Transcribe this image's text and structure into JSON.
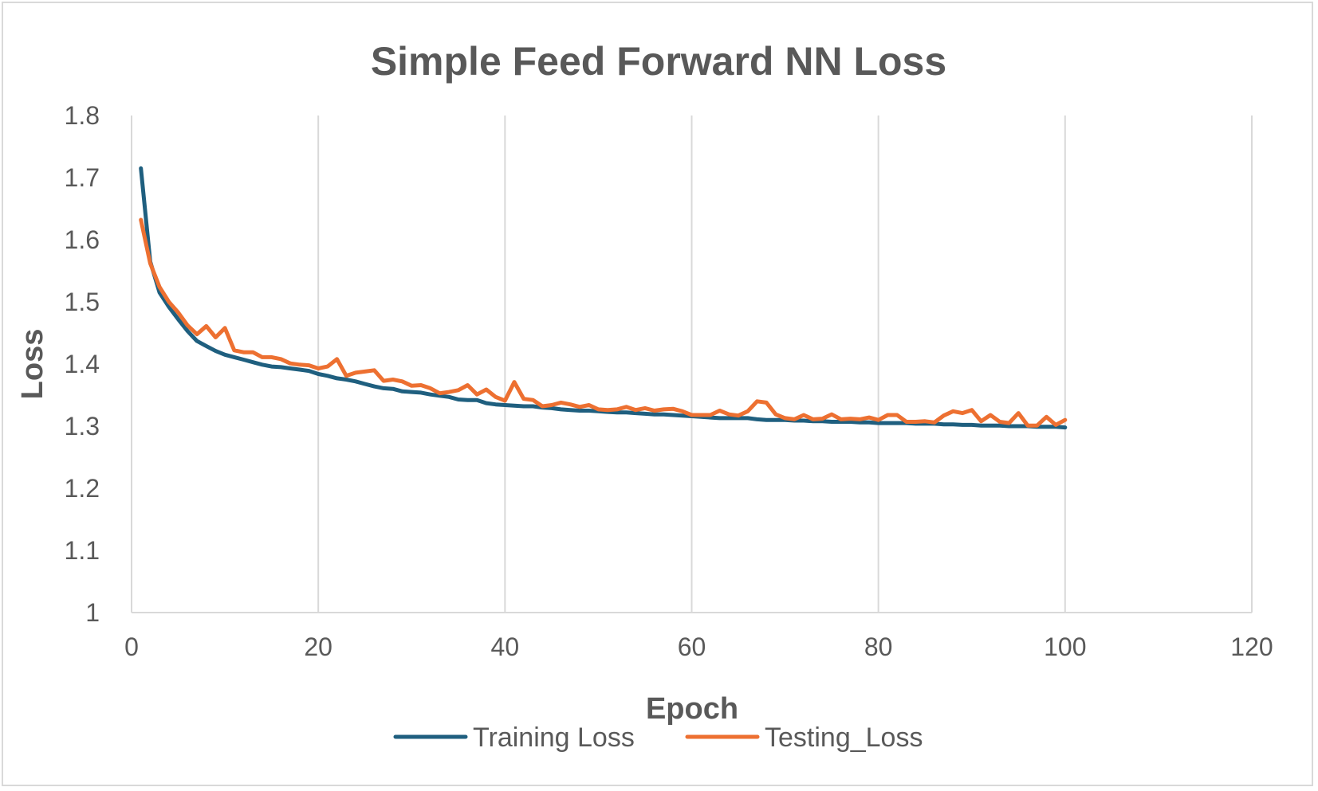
{
  "chart_data": {
    "type": "scatter",
    "title": "Simple Feed Forward NN Loss",
    "xlabel": "Epoch",
    "ylabel": "Loss",
    "xlim": [
      0,
      120
    ],
    "ylim": [
      1,
      1.8
    ],
    "x_ticks": [
      "0",
      "20",
      "40",
      "60",
      "80",
      "100",
      "120"
    ],
    "y_ticks": [
      "1",
      "1.1",
      "1.2",
      "1.3",
      "1.4",
      "1.5",
      "1.6",
      "1.7",
      "1.8"
    ],
    "grid": "vertical",
    "legend_position": "bottom",
    "series": [
      {
        "name": "Training Loss",
        "color": "#1f5f7f",
        "x": [
          1,
          2,
          3,
          4,
          5,
          6,
          7,
          8,
          9,
          10,
          11,
          12,
          13,
          14,
          15,
          16,
          17,
          18,
          19,
          20,
          21,
          22,
          23,
          24,
          25,
          26,
          27,
          28,
          29,
          30,
          31,
          32,
          33,
          34,
          35,
          36,
          37,
          38,
          39,
          40,
          41,
          42,
          43,
          44,
          45,
          46,
          47,
          48,
          49,
          50,
          51,
          52,
          53,
          54,
          55,
          56,
          57,
          58,
          59,
          60,
          61,
          62,
          63,
          64,
          65,
          66,
          67,
          68,
          69,
          70,
          71,
          72,
          73,
          74,
          75,
          76,
          77,
          78,
          79,
          80,
          81,
          82,
          83,
          84,
          85,
          86,
          87,
          88,
          89,
          90,
          91,
          92,
          93,
          94,
          95,
          96,
          97,
          98,
          99,
          100
        ],
        "y": [
          1.715,
          1.565,
          1.515,
          1.492,
          1.472,
          1.453,
          1.437,
          1.429,
          1.421,
          1.415,
          1.411,
          1.407,
          1.403,
          1.399,
          1.396,
          1.395,
          1.393,
          1.391,
          1.389,
          1.384,
          1.381,
          1.377,
          1.375,
          1.372,
          1.368,
          1.364,
          1.361,
          1.36,
          1.356,
          1.355,
          1.354,
          1.351,
          1.349,
          1.347,
          1.343,
          1.342,
          1.342,
          1.337,
          1.335,
          1.334,
          1.333,
          1.332,
          1.332,
          1.33,
          1.329,
          1.327,
          1.326,
          1.325,
          1.325,
          1.324,
          1.323,
          1.322,
          1.322,
          1.321,
          1.32,
          1.319,
          1.319,
          1.318,
          1.317,
          1.316,
          1.315,
          1.314,
          1.313,
          1.313,
          1.313,
          1.313,
          1.311,
          1.31,
          1.31,
          1.31,
          1.309,
          1.309,
          1.308,
          1.308,
          1.307,
          1.307,
          1.307,
          1.306,
          1.306,
          1.305,
          1.305,
          1.305,
          1.305,
          1.304,
          1.304,
          1.304,
          1.303,
          1.303,
          1.302,
          1.302,
          1.301,
          1.301,
          1.301,
          1.3,
          1.3,
          1.3,
          1.299,
          1.299,
          1.299,
          1.298
        ]
      },
      {
        "name": "Testing_Loss",
        "color": "#ed7031",
        "x": [
          1,
          2,
          3,
          4,
          5,
          6,
          7,
          8,
          9,
          10,
          11,
          12,
          13,
          14,
          15,
          16,
          17,
          18,
          19,
          20,
          21,
          22,
          23,
          24,
          25,
          26,
          27,
          28,
          29,
          30,
          31,
          32,
          33,
          34,
          35,
          36,
          37,
          38,
          39,
          40,
          41,
          42,
          43,
          44,
          45,
          46,
          47,
          48,
          49,
          50,
          51,
          52,
          53,
          54,
          55,
          56,
          57,
          58,
          59,
          60,
          61,
          62,
          63,
          64,
          65,
          66,
          67,
          68,
          69,
          70,
          71,
          72,
          73,
          74,
          75,
          76,
          77,
          78,
          79,
          80,
          81,
          82,
          83,
          84,
          85,
          86,
          87,
          88,
          89,
          90,
          91,
          92,
          93,
          94,
          95,
          96,
          97,
          98,
          99,
          100
        ],
        "y": [
          1.632,
          1.562,
          1.524,
          1.5,
          1.483,
          1.462,
          1.448,
          1.461,
          1.443,
          1.458,
          1.422,
          1.419,
          1.419,
          1.411,
          1.411,
          1.408,
          1.401,
          1.399,
          1.398,
          1.393,
          1.396,
          1.408,
          1.381,
          1.386,
          1.388,
          1.39,
          1.373,
          1.375,
          1.372,
          1.365,
          1.366,
          1.361,
          1.353,
          1.355,
          1.358,
          1.366,
          1.351,
          1.359,
          1.347,
          1.341,
          1.371,
          1.344,
          1.342,
          1.332,
          1.334,
          1.338,
          1.335,
          1.331,
          1.334,
          1.327,
          1.326,
          1.327,
          1.331,
          1.326,
          1.329,
          1.325,
          1.327,
          1.328,
          1.324,
          1.318,
          1.318,
          1.318,
          1.325,
          1.319,
          1.317,
          1.324,
          1.34,
          1.338,
          1.319,
          1.313,
          1.311,
          1.318,
          1.311,
          1.312,
          1.319,
          1.311,
          1.312,
          1.311,
          1.314,
          1.31,
          1.318,
          1.318,
          1.307,
          1.307,
          1.308,
          1.306,
          1.317,
          1.324,
          1.321,
          1.326,
          1.308,
          1.318,
          1.307,
          1.305,
          1.321,
          1.301,
          1.301,
          1.315,
          1.302,
          1.31
        ]
      }
    ]
  }
}
